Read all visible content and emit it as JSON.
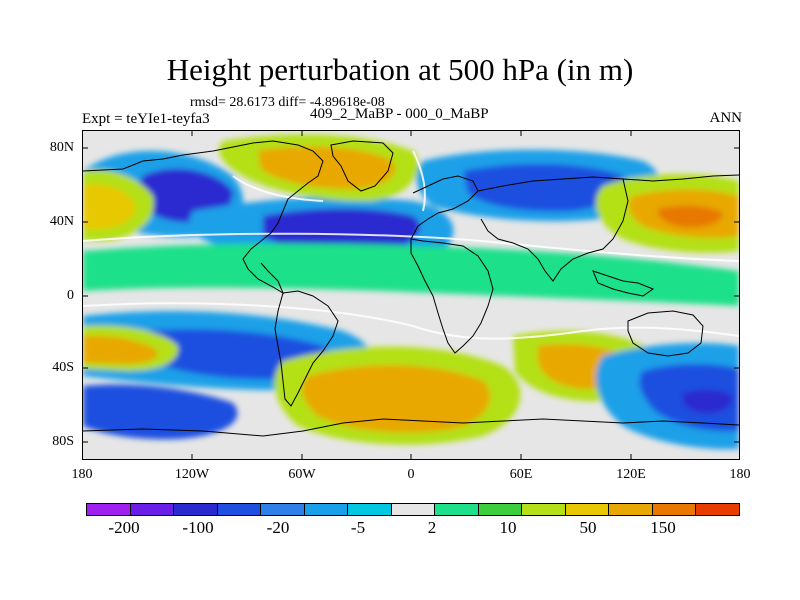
{
  "title": "Height perturbation at 500 hPa (in m)",
  "stats_line": "rmsd= 28.6173 diff= -4.89618e-08",
  "experiment_label": "Expt = teYIe1-teyfa3",
  "period_label": "409_2_MaBP - 000_0_MaBP",
  "season_label": "ANN",
  "y_axis_ticks": [
    "80N",
    "40N",
    "0",
    "40S",
    "80S"
  ],
  "x_axis_ticks": [
    "180",
    "120W",
    "60W",
    "0",
    "60E",
    "120E",
    "180"
  ],
  "colorbar": {
    "colors": [
      "#a020f0",
      "#6a1ee8",
      "#2a2ad0",
      "#1f4fe0",
      "#2f7fe8",
      "#1aa0e8",
      "#00c8e0",
      "#e6e6e6",
      "#1ee08a",
      "#3ccf3c",
      "#b4e018",
      "#e8c800",
      "#e8a800",
      "#e87800",
      "#e83c00"
    ],
    "labels": [
      "-200",
      "-100",
      "-20",
      "-5",
      "2",
      "10",
      "50",
      "150"
    ]
  }
}
